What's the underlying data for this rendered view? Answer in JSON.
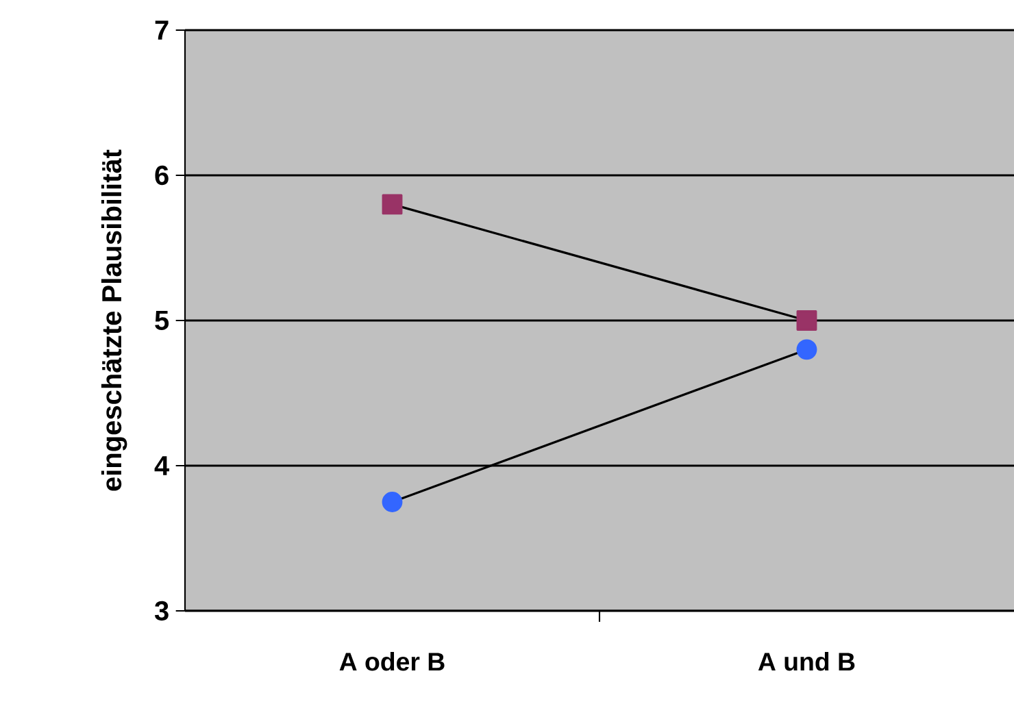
{
  "chart_data": {
    "type": "line",
    "ylabel": "eingeschätzte Plausibilität",
    "categories": [
      "A oder B",
      "A und B"
    ],
    "series": [
      {
        "color": "#993366",
        "marker": "square",
        "values": [
          5.8,
          5.0
        ]
      },
      {
        "color": "#3366ff",
        "marker": "circle",
        "values": [
          3.75,
          4.8
        ]
      }
    ],
    "ylim": [
      3,
      7
    ],
    "yticks": [
      3,
      4,
      5,
      6,
      7
    ],
    "grid": "y"
  }
}
